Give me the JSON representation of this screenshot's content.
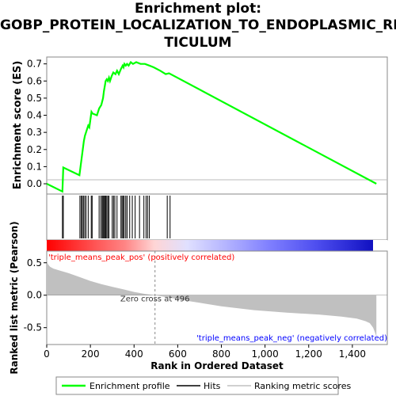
{
  "title_lines": [
    "Enrichment plot:",
    "GOBP_PROTEIN_LOCALIZATION_TO_ENDOPLASMIC_RE",
    "TICULUM"
  ],
  "chart_data": {
    "type": "line",
    "es_ylabel": "Enrichment score (ES)",
    "es_yticks": [
      0.0,
      0.1,
      0.2,
      0.3,
      0.4,
      0.5,
      0.6,
      0.7
    ],
    "es_yticklabels": [
      "0.0",
      "0.1",
      "0.2",
      "0.3",
      "0.4",
      "0.5",
      "0.6",
      "0.7"
    ],
    "es_ylim": [
      -0.06,
      0.74
    ],
    "xlim": [
      0,
      1560
    ],
    "xlabel": "Rank in Ordered Dataset",
    "xticks": [
      0,
      200,
      400,
      600,
      800,
      1000,
      1200,
      1400
    ],
    "xticklabels": [
      "0",
      "200",
      "400",
      "600",
      "800",
      "1,000",
      "1,200",
      "1,400"
    ],
    "enrichment_profile": {
      "name": "Enrichment profile",
      "color": "#00ff00",
      "x": [
        0,
        72,
        76,
        150,
        155,
        160,
        165,
        170,
        175,
        180,
        185,
        190,
        195,
        205,
        210,
        230,
        240,
        250,
        258,
        262,
        266,
        270,
        275,
        280,
        285,
        290,
        298,
        305,
        315,
        322,
        330,
        340,
        348,
        352,
        356,
        362,
        368,
        375,
        385,
        395,
        410,
        430,
        450,
        470,
        490,
        520,
        545,
        560,
        575,
        1510
      ],
      "y": [
        0.0,
        -0.045,
        0.095,
        0.05,
        0.1,
        0.15,
        0.2,
        0.25,
        0.28,
        0.3,
        0.32,
        0.34,
        0.33,
        0.42,
        0.41,
        0.4,
        0.44,
        0.46,
        0.5,
        0.54,
        0.57,
        0.6,
        0.61,
        0.6,
        0.62,
        0.6,
        0.63,
        0.65,
        0.64,
        0.66,
        0.64,
        0.67,
        0.69,
        0.68,
        0.7,
        0.69,
        0.7,
        0.69,
        0.71,
        0.7,
        0.71,
        0.7,
        0.7,
        0.69,
        0.68,
        0.66,
        0.64,
        0.645,
        0.635,
        0.0
      ]
    },
    "hits": {
      "name": "Hits",
      "positions": [
        72,
        76,
        152,
        158,
        163,
        168,
        174,
        180,
        190,
        204,
        208,
        240,
        248,
        254,
        258,
        262,
        266,
        270,
        275,
        280,
        285,
        300,
        306,
        312,
        322,
        340,
        345,
        350,
        355,
        362,
        368,
        380,
        392,
        405,
        425,
        445,
        455,
        462,
        470,
        552,
        565
      ]
    },
    "ranked_metric": {
      "name": "Ranking metric scores",
      "ylabel": "Ranked list metric (Pearson)",
      "yticks": [
        0.5,
        0.0,
        -0.5
      ],
      "yticklabels": [
        "0.5",
        "0.0",
        "-0.5"
      ],
      "ylim": [
        -0.76,
        0.68
      ],
      "x": [
        0,
        5,
        15,
        30,
        60,
        100,
        150,
        200,
        250,
        300,
        350,
        400,
        450,
        496,
        550,
        650,
        800,
        950,
        1100,
        1250,
        1350,
        1420,
        1460,
        1480,
        1495,
        1503,
        1510
      ],
      "values": [
        0.56,
        0.48,
        0.44,
        0.41,
        0.38,
        0.34,
        0.28,
        0.22,
        0.17,
        0.13,
        0.09,
        0.05,
        0.02,
        0.0,
        -0.03,
        -0.09,
        -0.17,
        -0.23,
        -0.27,
        -0.3,
        -0.33,
        -0.36,
        -0.4,
        -0.43,
        -0.5,
        -0.57,
        -0.64
      ],
      "zero_cross_label": "Zero cross at 496",
      "zero_cross": 496,
      "pos_label": "'triple_means_peak_pos' (positively correlated)",
      "neg_label": "'triple_means_peak_neg' (negatively correlated)"
    },
    "legend": {
      "placement": "bottom",
      "items": [
        {
          "label": "Enrichment profile",
          "color": "#00ff00"
        },
        {
          "label": "Hits",
          "color": "#000000"
        },
        {
          "label": "Ranking metric scores",
          "color": "#c0c0c0"
        }
      ]
    }
  }
}
